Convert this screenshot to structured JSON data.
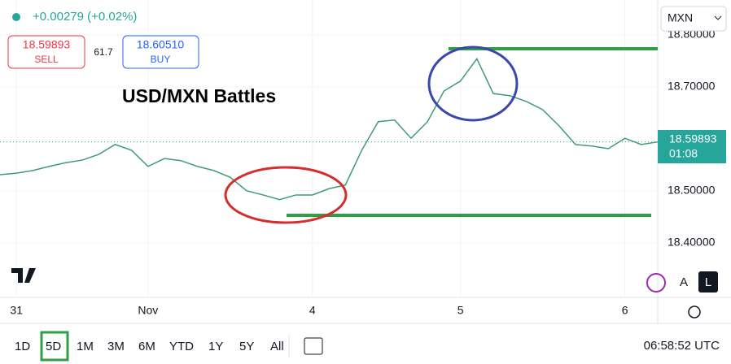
{
  "header": {
    "change": "+0.00279 (+0.02%)",
    "sell_price": "18.59893",
    "sell": "SELL",
    "spread": "61.7",
    "buy_price": "18.60510",
    "buy": "BUY",
    "currency": "MXN"
  },
  "price_tag": {
    "price": "18.59893",
    "countdown": "01:08"
  },
  "side_buttons": [
    "A",
    "L"
  ],
  "toolbar": {
    "ranges": [
      "1D",
      "5D",
      "1M",
      "3M",
      "6M",
      "YTD",
      "1Y",
      "5Y",
      "All"
    ],
    "clock": "06:58:52 UTC"
  },
  "chart_data": {
    "type": "line",
    "title": "USD/MXN Battles",
    "categories": [
      null,
      "31",
      null,
      null,
      null,
      null,
      null,
      null,
      null,
      "Nov",
      null,
      null,
      null,
      null,
      null,
      null,
      null,
      null,
      null,
      "4",
      null,
      null,
      null,
      null,
      null,
      null,
      null,
      null,
      "5",
      null,
      null,
      null,
      null,
      null,
      null,
      null,
      null,
      null,
      "6",
      null,
      null
    ],
    "values": [
      18.531,
      18.534,
      18.539,
      18.547,
      18.554,
      18.559,
      18.57,
      18.589,
      18.578,
      18.547,
      18.562,
      18.558,
      18.547,
      18.539,
      18.526,
      18.5,
      18.492,
      18.483,
      18.492,
      18.492,
      18.504,
      18.511,
      18.578,
      18.633,
      18.636,
      18.601,
      18.633,
      18.692,
      18.711,
      18.754,
      18.687,
      18.683,
      18.672,
      18.656,
      18.625,
      18.589,
      18.586,
      18.581,
      18.601,
      18.589,
      18.594
    ],
    "color": "#3f9b73",
    "ylim": [
      18.295,
      18.867
    ],
    "yticks": [
      {
        "value": 18.4,
        "label": "18.40000"
      },
      {
        "value": 18.5,
        "label": "18.50000"
      },
      {
        "value": 18.7,
        "label": "18.70000"
      },
      {
        "value": 18.8,
        "label": "18.80000"
      }
    ],
    "grid": true
  }
}
